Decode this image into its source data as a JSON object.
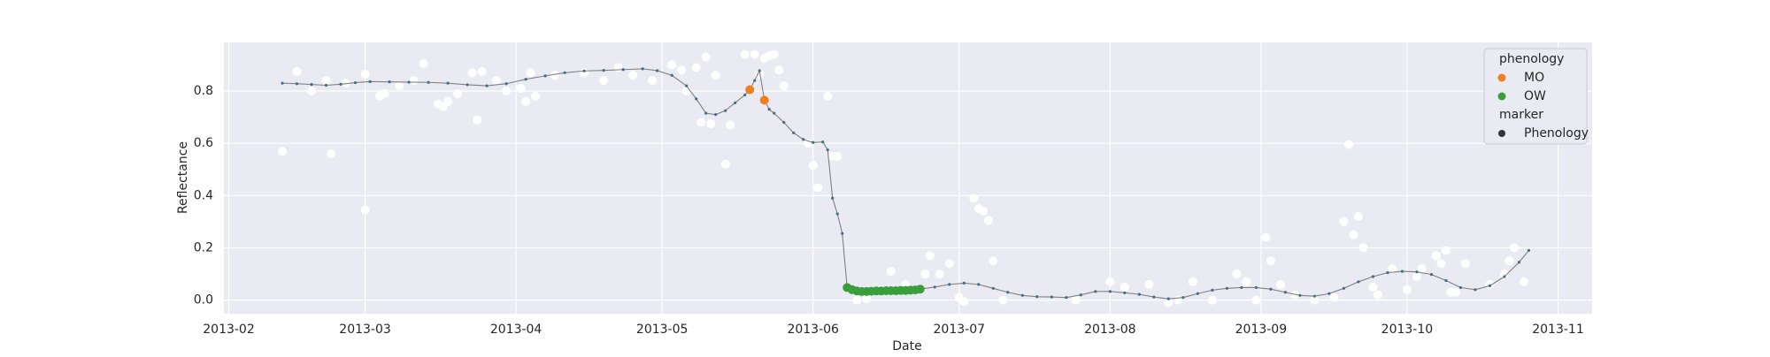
{
  "chart_data": {
    "type": "scatter",
    "xlabel": "Date",
    "ylabel": "Reflectance",
    "xlim": [
      "2013-01-31",
      "2013-11-08"
    ],
    "xticks": [
      "2013-02",
      "2013-03",
      "2013-04",
      "2013-05",
      "2013-06",
      "2013-07",
      "2013-08",
      "2013-09",
      "2013-10",
      "2013-11"
    ],
    "ylim": [
      -0.052,
      0.986
    ],
    "yticks": [
      {
        "value": 0,
        "label": "0.0"
      },
      0.2,
      0.4,
      0.6,
      0.8
    ],
    "grid": true,
    "background": "#eaeaf2",
    "series": [
      {
        "style": "points",
        "color": "#ffffff",
        "x": [
          "2013-02-12",
          "2013-02-15",
          "2013-02-18",
          "2013-02-21",
          "2013-02-22",
          "2013-02-25",
          "2013-03-01",
          "2013-03-01",
          "2013-03-04",
          "2013-03-05",
          "2013-03-08",
          "2013-03-11",
          "2013-03-13",
          "2013-03-16",
          "2013-03-17",
          "2013-03-18",
          "2013-03-20",
          "2013-03-23",
          "2013-03-25",
          "2013-03-24",
          "2013-03-28",
          "2013-03-30",
          "2013-04-02",
          "2013-04-03",
          "2013-04-04",
          "2013-04-05",
          "2013-04-09",
          "2013-04-15",
          "2013-04-19",
          "2013-04-22",
          "2013-04-25",
          "2013-04-29",
          "2013-05-03",
          "2013-05-05",
          "2013-05-06",
          "2013-05-08",
          "2013-05-10",
          "2013-05-12",
          "2013-05-09",
          "2013-05-11",
          "2013-05-14",
          "2013-05-15",
          "2013-05-18",
          "2013-05-21",
          "2013-05-20",
          "2013-05-22",
          "2013-05-23",
          "2013-05-24",
          "2013-05-25",
          "2013-05-26",
          "2013-05-31",
          "2013-06-01",
          "2013-06-02",
          "2013-06-04",
          "2013-06-05",
          "2013-06-06",
          "2013-06-10",
          "2013-06-12",
          "2013-06-15",
          "2013-06-17",
          "2013-06-20",
          "2013-06-24",
          "2013-06-25",
          "2013-06-27",
          "2013-06-29",
          "2013-07-01",
          "2013-07-02",
          "2013-07-04",
          "2013-07-05",
          "2013-07-06",
          "2013-07-07",
          "2013-07-08",
          "2013-07-10",
          "2013-07-25",
          "2013-08-01",
          "2013-08-04",
          "2013-08-09",
          "2013-08-13",
          "2013-08-15",
          "2013-08-18",
          "2013-08-22",
          "2013-08-27",
          "2013-08-29",
          "2013-08-31",
          "2013-09-02",
          "2013-09-03",
          "2013-09-05",
          "2013-09-08",
          "2013-09-12",
          "2013-09-16",
          "2013-09-18",
          "2013-09-19",
          "2013-09-20",
          "2013-09-21",
          "2013-09-22",
          "2013-09-24",
          "2013-09-25",
          "2013-09-28",
          "2013-10-01",
          "2013-10-03",
          "2013-10-04",
          "2013-10-07",
          "2013-10-08",
          "2013-10-09",
          "2013-10-10",
          "2013-10-11",
          "2013-10-13",
          "2013-10-18",
          "2013-10-21",
          "2013-10-22",
          "2013-10-23",
          "2013-10-25"
        ],
        "values": [
          0.57,
          0.875,
          0.8,
          0.84,
          0.56,
          0.83,
          0.345,
          0.865,
          0.78,
          0.79,
          0.82,
          0.84,
          0.905,
          0.75,
          0.74,
          0.76,
          0.79,
          0.87,
          0.875,
          0.69,
          0.84,
          0.8,
          0.81,
          0.76,
          0.87,
          0.78,
          0.86,
          0.87,
          0.84,
          0.89,
          0.86,
          0.84,
          0.9,
          0.88,
          0.8,
          0.89,
          0.93,
          0.86,
          0.68,
          0.675,
          0.52,
          0.67,
          0.94,
          0.865,
          0.94,
          0.925,
          0.935,
          0.94,
          0.88,
          0.82,
          0.6,
          0.515,
          0.43,
          0.78,
          0.55,
          0.55,
          0.0,
          0.005,
          0.04,
          0.11,
          0.06,
          0.1,
          0.17,
          0.1,
          0.14,
          0.01,
          -0.005,
          0.39,
          0.35,
          0.34,
          0.305,
          0.15,
          0.0,
          0.0,
          0.07,
          0.05,
          0.06,
          -0.01,
          0.0,
          0.07,
          0.0,
          0.1,
          0.07,
          0.0,
          0.24,
          0.15,
          0.06,
          0.02,
          0.0,
          0.01,
          0.3,
          0.595,
          0.25,
          0.32,
          0.2,
          0.05,
          0.02,
          0.12,
          0.04,
          0.09,
          0.12,
          0.17,
          0.14,
          0.19,
          0.03,
          0.03,
          0.14,
          0.06,
          0.1,
          0.15,
          0.2,
          0.07
        ]
      },
      {
        "style": "line",
        "color": "#808080",
        "marker_color": "#4a6b82",
        "x": [
          "2013-02-12",
          "2013-02-15",
          "2013-02-18",
          "2013-02-21",
          "2013-02-24",
          "2013-02-27",
          "2013-03-02",
          "2013-03-06",
          "2013-03-10",
          "2013-03-14",
          "2013-03-18",
          "2013-03-22",
          "2013-03-26",
          "2013-03-30",
          "2013-04-03",
          "2013-04-07",
          "2013-04-11",
          "2013-04-15",
          "2013-04-19",
          "2013-04-23",
          "2013-04-27",
          "2013-04-30",
          "2013-05-03",
          "2013-05-06",
          "2013-05-08",
          "2013-05-10",
          "2013-05-12",
          "2013-05-14",
          "2013-05-16",
          "2013-05-18",
          "2013-05-19",
          "2013-05-20",
          "2013-05-21",
          "2013-05-22",
          "2013-05-23",
          "2013-05-24",
          "2013-05-26",
          "2013-05-28",
          "2013-05-30",
          "2013-06-01",
          "2013-06-03",
          "2013-06-04",
          "2013-06-05",
          "2013-06-06",
          "2013-06-07",
          "2013-06-08",
          "2013-06-09",
          "2013-06-10",
          "2013-06-11",
          "2013-06-12",
          "2013-06-13",
          "2013-06-14",
          "2013-06-15",
          "2013-06-16",
          "2013-06-17",
          "2013-06-18",
          "2013-06-19",
          "2013-06-20",
          "2013-06-21",
          "2013-06-22",
          "2013-06-23",
          "2013-06-26",
          "2013-06-29",
          "2013-07-02",
          "2013-07-05",
          "2013-07-08",
          "2013-07-11",
          "2013-07-14",
          "2013-07-17",
          "2013-07-20",
          "2013-07-23",
          "2013-07-26",
          "2013-07-29",
          "2013-08-01",
          "2013-08-04",
          "2013-08-07",
          "2013-08-10",
          "2013-08-13",
          "2013-08-16",
          "2013-08-19",
          "2013-08-22",
          "2013-08-25",
          "2013-08-28",
          "2013-08-31",
          "2013-09-03",
          "2013-09-06",
          "2013-09-09",
          "2013-09-12",
          "2013-09-15",
          "2013-09-18",
          "2013-09-21",
          "2013-09-24",
          "2013-09-27",
          "2013-09-30",
          "2013-10-03",
          "2013-10-06",
          "2013-10-09",
          "2013-10-12",
          "2013-10-15",
          "2013-10-18",
          "2013-10-21",
          "2013-10-24",
          "2013-10-26"
        ],
        "values": [
          0.83,
          0.828,
          0.825,
          0.822,
          0.826,
          0.832,
          0.836,
          0.835,
          0.834,
          0.833,
          0.83,
          0.824,
          0.82,
          0.828,
          0.845,
          0.858,
          0.87,
          0.877,
          0.879,
          0.882,
          0.885,
          0.878,
          0.86,
          0.82,
          0.77,
          0.715,
          0.71,
          0.725,
          0.755,
          0.785,
          0.805,
          0.84,
          0.878,
          0.765,
          0.73,
          0.715,
          0.68,
          0.64,
          0.615,
          0.603,
          0.605,
          0.575,
          0.39,
          0.33,
          0.255,
          0.048,
          0.04,
          0.035,
          0.033,
          0.033,
          0.034,
          0.035,
          0.035,
          0.036,
          0.036,
          0.036,
          0.037,
          0.037,
          0.038,
          0.039,
          0.042,
          0.05,
          0.06,
          0.065,
          0.06,
          0.045,
          0.03,
          0.018,
          0.013,
          0.012,
          0.01,
          0.02,
          0.033,
          0.033,
          0.028,
          0.022,
          0.012,
          0.005,
          0.01,
          0.025,
          0.038,
          0.045,
          0.048,
          0.048,
          0.042,
          0.03,
          0.018,
          0.015,
          0.025,
          0.045,
          0.07,
          0.09,
          0.105,
          0.11,
          0.108,
          0.098,
          0.075,
          0.048,
          0.04,
          0.055,
          0.09,
          0.145,
          0.19
        ]
      },
      {
        "name": "MO",
        "style": "points",
        "color": "#f07f1f",
        "x": [
          "2013-05-19",
          "2013-05-22"
        ],
        "values": [
          0.805,
          0.765
        ]
      },
      {
        "name": "OW",
        "style": "points",
        "color": "#3a9e3a",
        "x": [
          "2013-06-08",
          "2013-06-09",
          "2013-06-10",
          "2013-06-11",
          "2013-06-12",
          "2013-06-13",
          "2013-06-14",
          "2013-06-15",
          "2013-06-16",
          "2013-06-17",
          "2013-06-18",
          "2013-06-19",
          "2013-06-20",
          "2013-06-21",
          "2013-06-22",
          "2013-06-23"
        ],
        "values": [
          0.048,
          0.04,
          0.035,
          0.033,
          0.033,
          0.034,
          0.035,
          0.035,
          0.036,
          0.036,
          0.036,
          0.037,
          0.037,
          0.038,
          0.039,
          0.042
        ]
      }
    ],
    "legend": {
      "position": "upper right",
      "phenology_title": "phenology",
      "marker_title": "marker",
      "marker_label": "Phenology",
      "marker_color": "#333333"
    }
  }
}
